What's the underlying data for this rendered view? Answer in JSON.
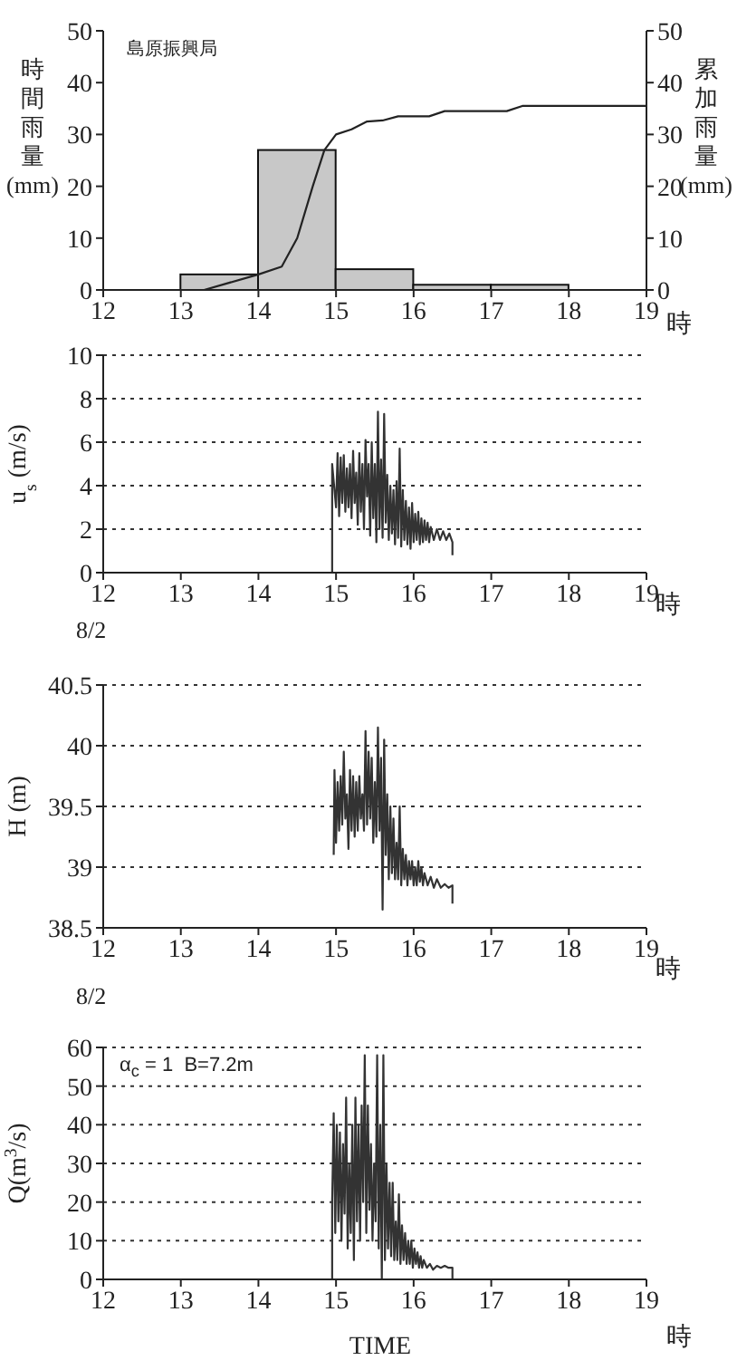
{
  "chart_data": [
    {
      "type": "histogram",
      "xlabel": "時",
      "ylabel": "時間雨量(mm)",
      "y2label": "累加雨量(mm)",
      "annotations": [
        "島原振興局"
      ],
      "xlim": [
        12,
        19
      ],
      "xticks": [
        12,
        13,
        14,
        15,
        16,
        17,
        18,
        19
      ],
      "ylim": [
        0,
        50
      ],
      "yticks": [
        0,
        10,
        20,
        30,
        40,
        50
      ],
      "y2lim": [
        0,
        50
      ],
      "y2ticks": [
        0,
        10,
        20,
        30,
        40,
        50
      ],
      "grid": false,
      "series": [
        {
          "color": "#c8c8c8",
          "bins": [
            13,
            14,
            15,
            16,
            17,
            18
          ],
          "values": [
            3,
            27,
            4,
            1,
            1
          ]
        },
        {
          "type": "line",
          "axis": "y2",
          "color": "#222222",
          "x": [
            13.3,
            14,
            14.3,
            14.5,
            14.7,
            14.85,
            15,
            15.2,
            15.4,
            15.6,
            15.8,
            16,
            16.2,
            16.4,
            17,
            17.2,
            17.4,
            19
          ],
          "values": [
            0,
            3,
            4.5,
            10,
            20,
            27,
            30,
            31,
            32.5,
            32.7,
            33.5,
            33.5,
            33.5,
            34.5,
            34.5,
            34.5,
            35.5,
            35.5
          ]
        }
      ]
    },
    {
      "type": "line",
      "xlabel": "時",
      "ylabel": "u$_{s}$ (m/s)",
      "annotations": [
        "8/2"
      ],
      "xlim": [
        12,
        19
      ],
      "xticks": [
        12,
        13,
        14,
        15,
        16,
        17,
        18,
        19
      ],
      "ylim": [
        0,
        10
      ],
      "yticks": [
        0,
        2,
        4,
        6,
        8,
        10
      ],
      "grid": "y",
      "color": "#333333",
      "x": [
        14.95,
        14.95,
        15.0,
        15.02,
        15.04,
        15.06,
        15.08,
        15.1,
        15.12,
        15.14,
        15.16,
        15.18,
        15.2,
        15.22,
        15.24,
        15.26,
        15.28,
        15.3,
        15.32,
        15.34,
        15.36,
        15.38,
        15.4,
        15.42,
        15.44,
        15.46,
        15.48,
        15.5,
        15.52,
        15.54,
        15.56,
        15.58,
        15.6,
        15.62,
        15.64,
        15.66,
        15.68,
        15.7,
        15.72,
        15.74,
        15.76,
        15.78,
        15.8,
        15.82,
        15.84,
        15.86,
        15.88,
        15.9,
        15.92,
        15.94,
        15.96,
        15.98,
        16.0,
        16.02,
        16.04,
        16.06,
        16.08,
        16.1,
        16.12,
        16.14,
        16.16,
        16.18,
        16.2,
        16.22,
        16.26,
        16.3,
        16.34,
        16.38,
        16.42,
        16.46,
        16.5,
        16.5
      ],
      "values": [
        0,
        5.0,
        3.0,
        5.5,
        2.6,
        5.3,
        3.2,
        5.4,
        2.8,
        4.8,
        3.0,
        5.0,
        2.5,
        5.6,
        3.2,
        4.6,
        2.2,
        5.5,
        2.8,
        5.0,
        2.0,
        6.1,
        3.5,
        5.0,
        1.7,
        6.0,
        2.5,
        5.0,
        1.4,
        7.4,
        2.0,
        5.2,
        1.6,
        7.3,
        2.3,
        4.5,
        1.5,
        4.0,
        1.8,
        3.8,
        1.3,
        4.2,
        1.6,
        5.7,
        1.2,
        3.8,
        1.5,
        3.3,
        1.3,
        3.0,
        1.1,
        3.2,
        1.4,
        2.7,
        1.5,
        2.8,
        1.3,
        2.5,
        1.4,
        2.4,
        1.5,
        2.3,
        1.4,
        2.1,
        1.5,
        2.0,
        1.5,
        1.9,
        1.5,
        1.8,
        1.4,
        0.8
      ]
    },
    {
      "type": "line",
      "xlabel": "時",
      "ylabel": "H (m)",
      "annotations": [
        "8/2"
      ],
      "xlim": [
        12,
        19
      ],
      "xticks": [
        12,
        13,
        14,
        15,
        16,
        17,
        18,
        19
      ],
      "ylim": [
        38.5,
        40.5
      ],
      "yticks": [
        38.5,
        39,
        39.5,
        40,
        40.5
      ],
      "grid": "y",
      "color": "#333333",
      "x": [
        14.97,
        14.98,
        15.0,
        15.02,
        15.04,
        15.06,
        15.08,
        15.1,
        15.12,
        15.14,
        15.16,
        15.18,
        15.2,
        15.22,
        15.24,
        15.26,
        15.28,
        15.3,
        15.32,
        15.34,
        15.36,
        15.38,
        15.4,
        15.42,
        15.44,
        15.46,
        15.48,
        15.5,
        15.52,
        15.54,
        15.56,
        15.58,
        15.6,
        15.62,
        15.64,
        15.66,
        15.68,
        15.7,
        15.72,
        15.74,
        15.76,
        15.78,
        15.8,
        15.82,
        15.84,
        15.86,
        15.88,
        15.9,
        15.92,
        15.94,
        15.96,
        15.98,
        16.0,
        16.02,
        16.04,
        16.06,
        16.08,
        16.1,
        16.12,
        16.14,
        16.18,
        16.22,
        16.26,
        16.3,
        16.35,
        16.4,
        16.45,
        16.5,
        16.5
      ],
      "values": [
        39.1,
        39.8,
        39.2,
        39.7,
        39.3,
        39.75,
        39.35,
        39.95,
        39.4,
        39.6,
        39.15,
        39.8,
        39.3,
        39.75,
        39.25,
        39.7,
        39.3,
        39.75,
        39.4,
        39.6,
        39.3,
        40.12,
        39.35,
        39.95,
        39.4,
        39.9,
        39.2,
        39.7,
        39.25,
        40.15,
        39.3,
        39.9,
        38.65,
        40.05,
        39.1,
        39.6,
        38.9,
        39.5,
        38.95,
        39.4,
        38.9,
        39.2,
        38.9,
        39.5,
        38.85,
        39.15,
        38.9,
        39.1,
        38.85,
        39.05,
        38.9,
        39.05,
        38.85,
        39.0,
        38.85,
        39.05,
        38.88,
        39.0,
        38.85,
        38.95,
        38.85,
        38.92,
        38.83,
        38.9,
        38.83,
        38.86,
        38.83,
        38.85,
        38.7
      ]
    },
    {
      "type": "line",
      "xlabel": "TIME",
      "ylabel": "Q(m$^{3}$/s)",
      "annotations": [
        "α$_{c}$ = 1  B=7.2m",
        "時"
      ],
      "xlim": [
        12,
        19
      ],
      "xticks": [
        12,
        13,
        14,
        15,
        16,
        17,
        18,
        19
      ],
      "ylim": [
        0,
        60
      ],
      "yticks": [
        0,
        10,
        20,
        30,
        40,
        50,
        60
      ],
      "grid": "y",
      "color": "#333333",
      "x": [
        14.95,
        14.95,
        14.97,
        14.99,
        15.01,
        15.03,
        15.05,
        15.07,
        15.09,
        15.11,
        15.13,
        15.15,
        15.17,
        15.19,
        15.21,
        15.23,
        15.25,
        15.27,
        15.29,
        15.31,
        15.33,
        15.35,
        15.37,
        15.39,
        15.41,
        15.43,
        15.45,
        15.47,
        15.49,
        15.51,
        15.53,
        15.55,
        15.57,
        15.59,
        15.61,
        15.63,
        15.65,
        15.67,
        15.69,
        15.71,
        15.73,
        15.75,
        15.77,
        15.79,
        15.81,
        15.83,
        15.85,
        15.87,
        15.89,
        15.91,
        15.93,
        15.95,
        15.97,
        15.99,
        16.01,
        16.03,
        16.05,
        16.07,
        16.09,
        16.11,
        16.13,
        16.17,
        16.21,
        16.25,
        16.3,
        16.35,
        16.4,
        16.45,
        16.5,
        16.5
      ],
      "values": [
        0,
        20,
        43,
        12,
        40,
        15,
        38,
        10,
        35,
        17,
        47,
        8,
        30,
        12,
        40,
        5,
        47,
        15,
        40,
        10,
        45,
        20,
        58,
        12,
        45,
        18,
        35,
        10,
        30,
        15,
        58,
        8,
        40,
        0,
        58,
        5,
        30,
        8,
        25,
        6,
        25,
        5,
        15,
        5,
        22,
        4,
        14,
        5,
        12,
        4,
        10,
        4,
        10,
        3,
        8,
        4,
        7,
        3,
        6,
        3,
        5,
        3,
        4,
        2.5,
        3.5,
        3,
        3.5,
        3,
        3,
        0
      ]
    }
  ]
}
